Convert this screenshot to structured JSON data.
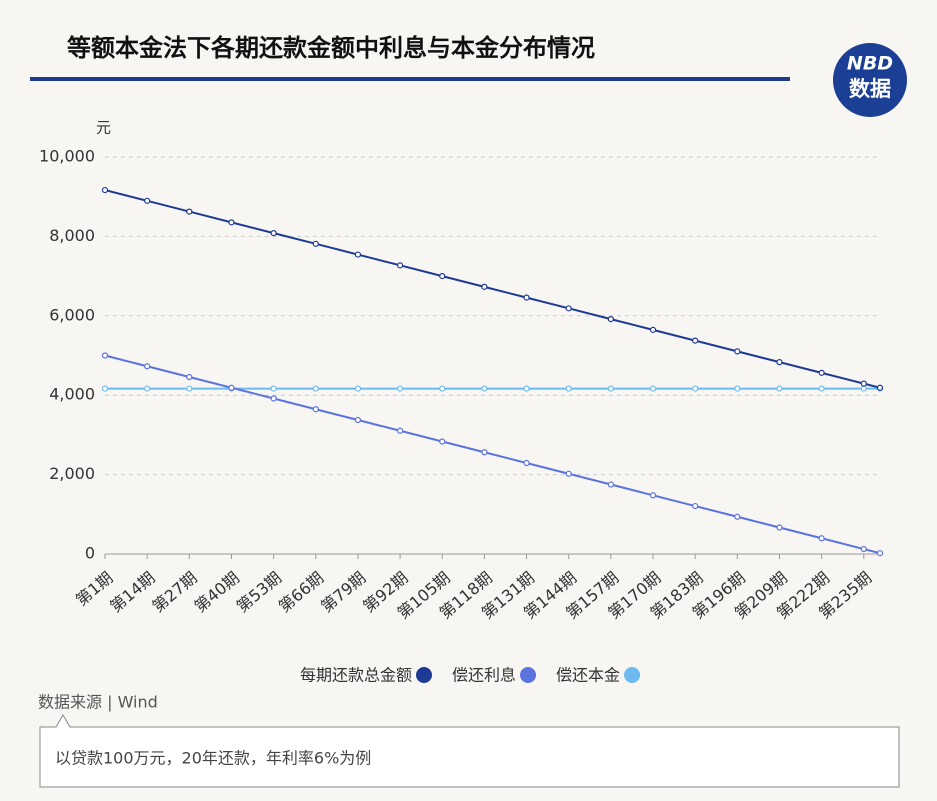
{
  "chart_data": {
    "type": "line",
    "title": "等额本金法下各期还款金额中利息与本金分布情况",
    "logo": [
      "NBD",
      "数据"
    ],
    "y_label": "元",
    "x": [
      1,
      14,
      27,
      40,
      53,
      66,
      79,
      92,
      105,
      118,
      131,
      144,
      157,
      170,
      183,
      196,
      209,
      222,
      235,
      240
    ],
    "xlim": [
      1,
      240
    ],
    "xticks": [
      {
        "value": 1,
        "label": "第1期"
      },
      {
        "value": 14,
        "label": "第14期"
      },
      {
        "value": 27,
        "label": "第27期"
      },
      {
        "value": 40,
        "label": "第40期"
      },
      {
        "value": 53,
        "label": "第53期"
      },
      {
        "value": 66,
        "label": "第66期"
      },
      {
        "value": 79,
        "label": "第79期"
      },
      {
        "value": 92,
        "label": "第92期"
      },
      {
        "value": 105,
        "label": "第105期"
      },
      {
        "value": 118,
        "label": "第118期"
      },
      {
        "value": 131,
        "label": "第131期"
      },
      {
        "value": 144,
        "label": "第144期"
      },
      {
        "value": 157,
        "label": "第157期"
      },
      {
        "value": 170,
        "label": "第170期"
      },
      {
        "value": 183,
        "label": "第183期"
      },
      {
        "value": 196,
        "label": "第196期"
      },
      {
        "value": 209,
        "label": "第209期"
      },
      {
        "value": 222,
        "label": "第222期"
      },
      {
        "value": 235,
        "label": "第235期"
      }
    ],
    "ylim": [
      0,
      10000
    ],
    "yticks": [
      0,
      {
        "value": 2000,
        "label": "2,000"
      },
      {
        "value": 4000,
        "label": "4,000"
      },
      {
        "value": 6000,
        "label": "6,000"
      },
      {
        "value": 8000,
        "label": "8,000"
      },
      {
        "value": 10000,
        "label": "10,000"
      }
    ],
    "grid": true,
    "series": [
      {
        "name": "每期还款总金额",
        "color": "#1d3a94",
        "values": [
          9167,
          8896,
          8625,
          8354,
          8083,
          7813,
          7542,
          7271,
          7000,
          6729,
          6458,
          6188,
          5917,
          5646,
          5375,
          5104,
          4833,
          4563,
          4292,
          4188
        ]
      },
      {
        "name": "偿还利息",
        "color": "#5b73de",
        "values": [
          5000,
          4729,
          4458,
          4188,
          3917,
          3646,
          3375,
          3104,
          2833,
          2563,
          2292,
          2021,
          1750,
          1479,
          1208,
          938,
          667,
          396,
          125,
          21
        ]
      },
      {
        "name": "偿还本金",
        "color": "#6cbaf0",
        "values": [
          4167,
          4167,
          4167,
          4167,
          4167,
          4167,
          4167,
          4167,
          4167,
          4167,
          4167,
          4167,
          4167,
          4167,
          4167,
          4167,
          4167,
          4167,
          4167,
          4167
        ]
      }
    ],
    "source": "数据来源 | Wind",
    "note": "以贷款100万元，20年还款，年利率6%为例"
  }
}
